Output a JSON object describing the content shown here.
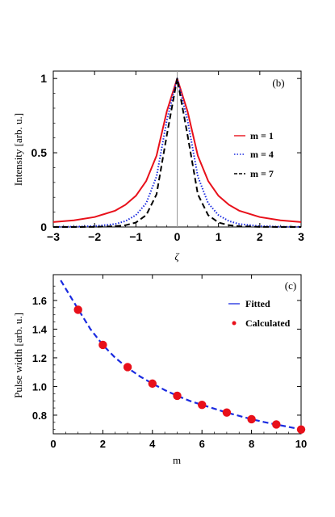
{
  "chart_data": [
    {
      "type": "line",
      "panel_label": "(b)",
      "xlabel": "ζ",
      "ylabel": "Intensity [arb. u.]",
      "xlim": [
        -3,
        3
      ],
      "ylim": [
        0,
        1.05
      ],
      "xticks": [
        "−3",
        "−2",
        "−1",
        "0",
        "1",
        "2",
        "3"
      ],
      "yticks": [
        "0",
        "0.5",
        "1"
      ],
      "grid": false,
      "legend_position": "right",
      "x": [
        -3,
        -2.5,
        -2,
        -1.5,
        -1.25,
        -1,
        -0.75,
        -0.5,
        -0.25,
        0,
        0.25,
        0.5,
        0.75,
        1,
        1.25,
        1.5,
        2,
        2.5,
        3
      ],
      "series": [
        {
          "name": "m = 1",
          "color": "#e8101a",
          "style": "solid",
          "values": [
            0.033,
            0.045,
            0.067,
            0.11,
            0.15,
            0.21,
            0.31,
            0.48,
            0.78,
            1.0,
            0.78,
            0.48,
            0.31,
            0.21,
            0.15,
            0.11,
            0.067,
            0.045,
            0.033
          ]
        },
        {
          "name": "m = 4",
          "color": "#1a2be0",
          "style": "dotted",
          "values": [
            0.001,
            0.002,
            0.006,
            0.02,
            0.04,
            0.08,
            0.16,
            0.34,
            0.72,
            1.0,
            0.72,
            0.34,
            0.16,
            0.08,
            0.04,
            0.02,
            0.006,
            0.002,
            0.001
          ]
        },
        {
          "name": "m = 7",
          "color": "#000000",
          "style": "dashed",
          "values": [
            0.0,
            0.0,
            0.001,
            0.005,
            0.012,
            0.03,
            0.08,
            0.22,
            0.62,
            1.0,
            0.62,
            0.22,
            0.08,
            0.03,
            0.012,
            0.005,
            0.001,
            0.0,
            0.0
          ]
        }
      ]
    },
    {
      "type": "scatter",
      "panel_label": "(c)",
      "xlabel": "m",
      "ylabel": "Pulse width [arb. u.]",
      "xlim": [
        0,
        10
      ],
      "ylim": [
        0.67,
        1.78
      ],
      "xticks": [
        "0",
        "2",
        "4",
        "6",
        "8",
        "10"
      ],
      "yticks": [
        "0.8",
        "1.0",
        "1.2",
        "1.4",
        "1.6"
      ],
      "grid": false,
      "legend_position": "top-right",
      "series": [
        {
          "name": "Fitted",
          "color": "#1a2be0",
          "style": "dashed",
          "x": [
            0.3,
            1,
            1.5,
            2,
            2.5,
            3,
            3.5,
            4,
            4.5,
            5,
            5.5,
            6,
            6.5,
            7,
            7.5,
            8,
            8.5,
            9,
            9.5,
            10
          ],
          "values": [
            1.74,
            1.54,
            1.4,
            1.29,
            1.2,
            1.13,
            1.07,
            1.02,
            0.975,
            0.935,
            0.9,
            0.872,
            0.845,
            0.818,
            0.795,
            0.772,
            0.752,
            0.735,
            0.718,
            0.7
          ]
        },
        {
          "name": "Calculated",
          "color": "#e8101a",
          "style": "markers",
          "x": [
            1,
            2,
            3,
            4,
            5,
            6,
            7,
            8,
            9,
            10
          ],
          "values": [
            1.535,
            1.29,
            1.135,
            1.02,
            0.935,
            0.872,
            0.818,
            0.772,
            0.735,
            0.7
          ]
        }
      ]
    }
  ]
}
